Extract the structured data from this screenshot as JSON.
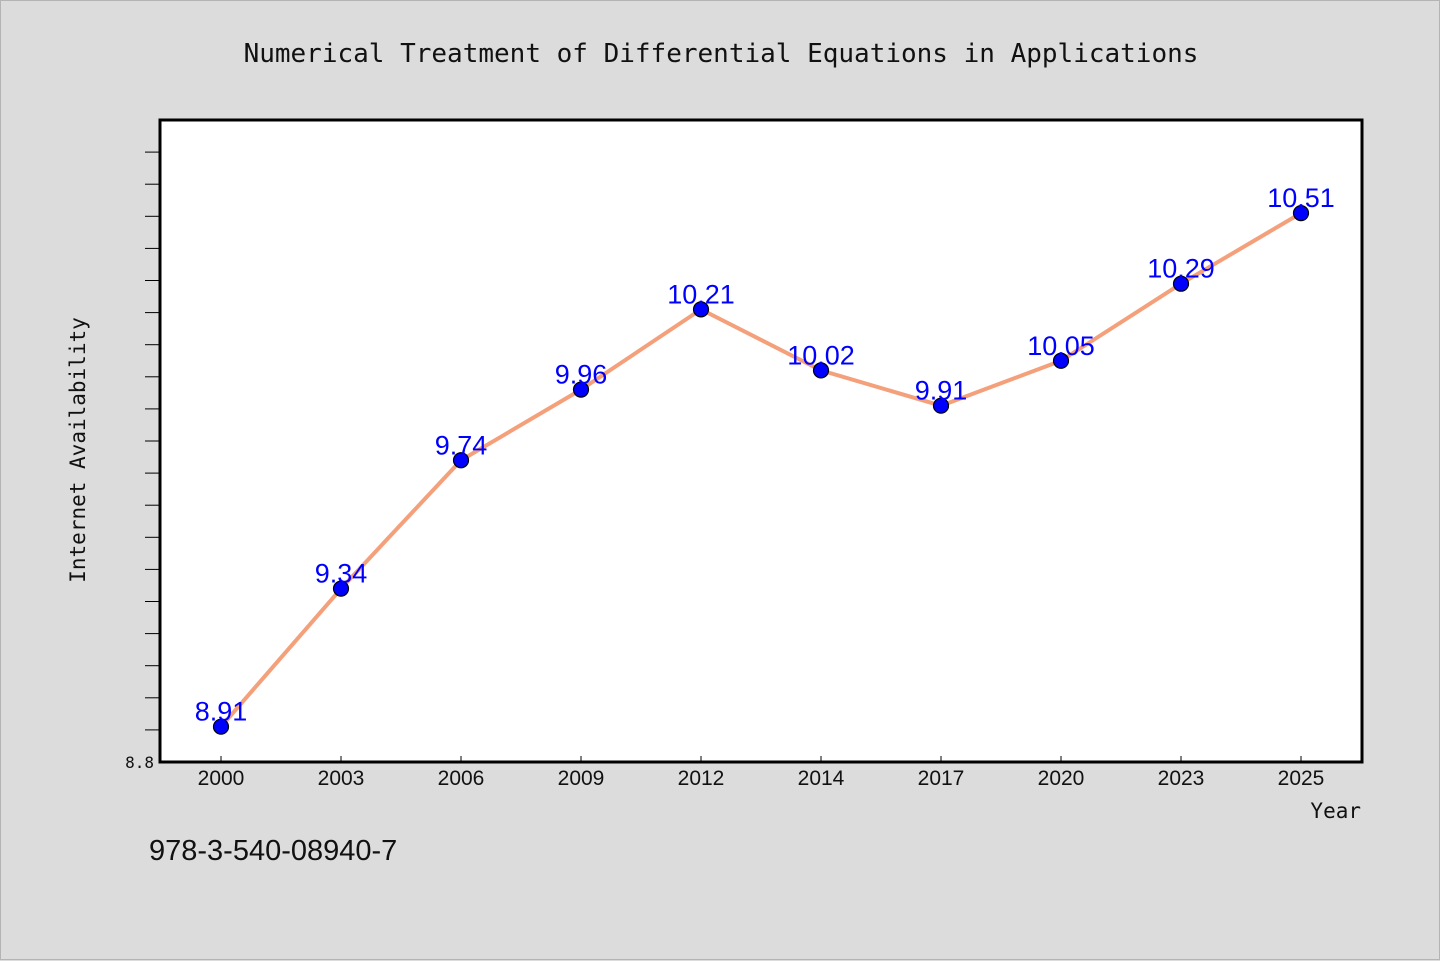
{
  "chart_data": {
    "type": "line",
    "title": "Numerical Treatment of Differential Equations in Applications",
    "xlabel": "Year",
    "ylabel": "Internet Availability",
    "categories": [
      "2000",
      "2003",
      "2006",
      "2009",
      "2012",
      "2014",
      "2017",
      "2020",
      "2023",
      "2025"
    ],
    "series": [
      {
        "values": [
          8.91,
          9.34,
          9.74,
          9.96,
          10.21,
          10.02,
          9.91,
          10.05,
          10.29,
          10.51
        ],
        "line_color": "#f4a07a",
        "marker_color": "#0000ff"
      }
    ],
    "data_labels": [
      "8.91",
      "9.34",
      "9.74",
      "9.96",
      "10.21",
      "10.02",
      "9.91",
      "10.05",
      "10.29",
      "10.51"
    ],
    "ylim": [
      8.8,
      10.8
    ],
    "y_tick_labels": [
      "8.8"
    ],
    "grid": false,
    "legend": "none"
  },
  "footer": {
    "identifier": "978-3-540-08940-7"
  }
}
